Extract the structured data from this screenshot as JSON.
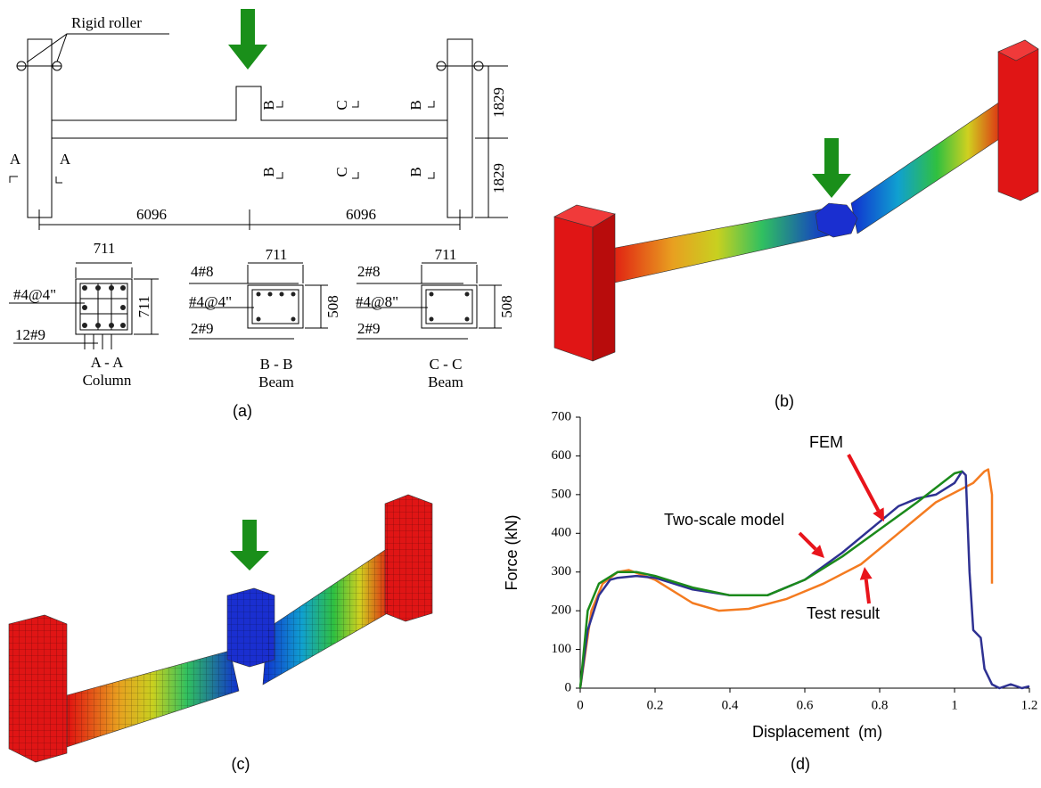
{
  "figure": {
    "a": {
      "label": "(a)",
      "roller": "Rigid roller",
      "span": [
        "6096",
        "6096"
      ],
      "height": [
        "1829",
        "1829"
      ],
      "cut_a": [
        "A",
        "A"
      ],
      "cut_top": [
        "B",
        "C",
        "B"
      ],
      "cut_bottom": [
        "B",
        "C",
        "B"
      ],
      "sections": [
        {
          "width": "711",
          "depth": "711",
          "bars": [
            "#4@4\"",
            "12#9"
          ],
          "name": "A - A",
          "kind": "Column"
        },
        {
          "width": "711",
          "depth": "508",
          "bars": [
            "4#8",
            "#4@4\"",
            "2#9"
          ],
          "name": "B - B",
          "kind": "Beam"
        },
        {
          "width": "711",
          "depth": "508",
          "bars": [
            "2#8",
            "#4@8\"",
            "2#9"
          ],
          "name": "C - C",
          "kind": "Beam"
        }
      ]
    },
    "b": {
      "label": "(b)"
    },
    "c": {
      "label": "(c)"
    },
    "d": {
      "label": "(d)"
    }
  },
  "chart_data": {
    "type": "line",
    "xlabel": "Displacement  (m)",
    "ylabel": "Force (kN)",
    "xlim": [
      0,
      1.2
    ],
    "xticks": [
      0,
      0.2,
      0.4,
      0.6,
      0.8,
      1,
      1.2
    ],
    "ylim": [
      0,
      700
    ],
    "yticks": [
      0,
      100,
      200,
      300,
      400,
      500,
      600,
      700
    ],
    "series": [
      {
        "name": "Test result",
        "color": "#f47b20",
        "x": [
          0,
          0.03,
          0.06,
          0.1,
          0.13,
          0.2,
          0.3,
          0.37,
          0.45,
          0.55,
          0.65,
          0.75,
          0.85,
          0.95,
          1.05,
          1.08,
          1.09,
          1.1,
          1.1
        ],
        "values": [
          0,
          200,
          270,
          300,
          305,
          280,
          220,
          200,
          205,
          230,
          270,
          320,
          400,
          480,
          530,
          560,
          565,
          500,
          270
        ]
      },
      {
        "name": "FEM",
        "color": "#2e3192",
        "x": [
          0,
          0.02,
          0.05,
          0.08,
          0.1,
          0.15,
          0.2,
          0.25,
          0.3,
          0.4,
          0.5,
          0.6,
          0.7,
          0.8,
          0.85,
          0.9,
          0.95,
          1.0,
          1.02,
          1.03,
          1.04,
          1.05,
          1.07,
          1.08,
          1.1,
          1.12,
          1.15,
          1.18,
          1.2
        ],
        "values": [
          0,
          150,
          240,
          280,
          285,
          290,
          285,
          270,
          255,
          240,
          240,
          280,
          350,
          430,
          470,
          490,
          500,
          530,
          560,
          550,
          300,
          150,
          130,
          50,
          10,
          0,
          10,
          0,
          5
        ]
      },
      {
        "name": "Two-scale model",
        "color": "#1b8a1b",
        "x": [
          0,
          0.02,
          0.05,
          0.1,
          0.15,
          0.2,
          0.3,
          0.4,
          0.5,
          0.6,
          0.7,
          0.8,
          0.9,
          1.0,
          1.02
        ],
        "values": [
          0,
          200,
          270,
          300,
          300,
          290,
          260,
          240,
          240,
          280,
          340,
          410,
          480,
          555,
          560
        ]
      }
    ]
  }
}
